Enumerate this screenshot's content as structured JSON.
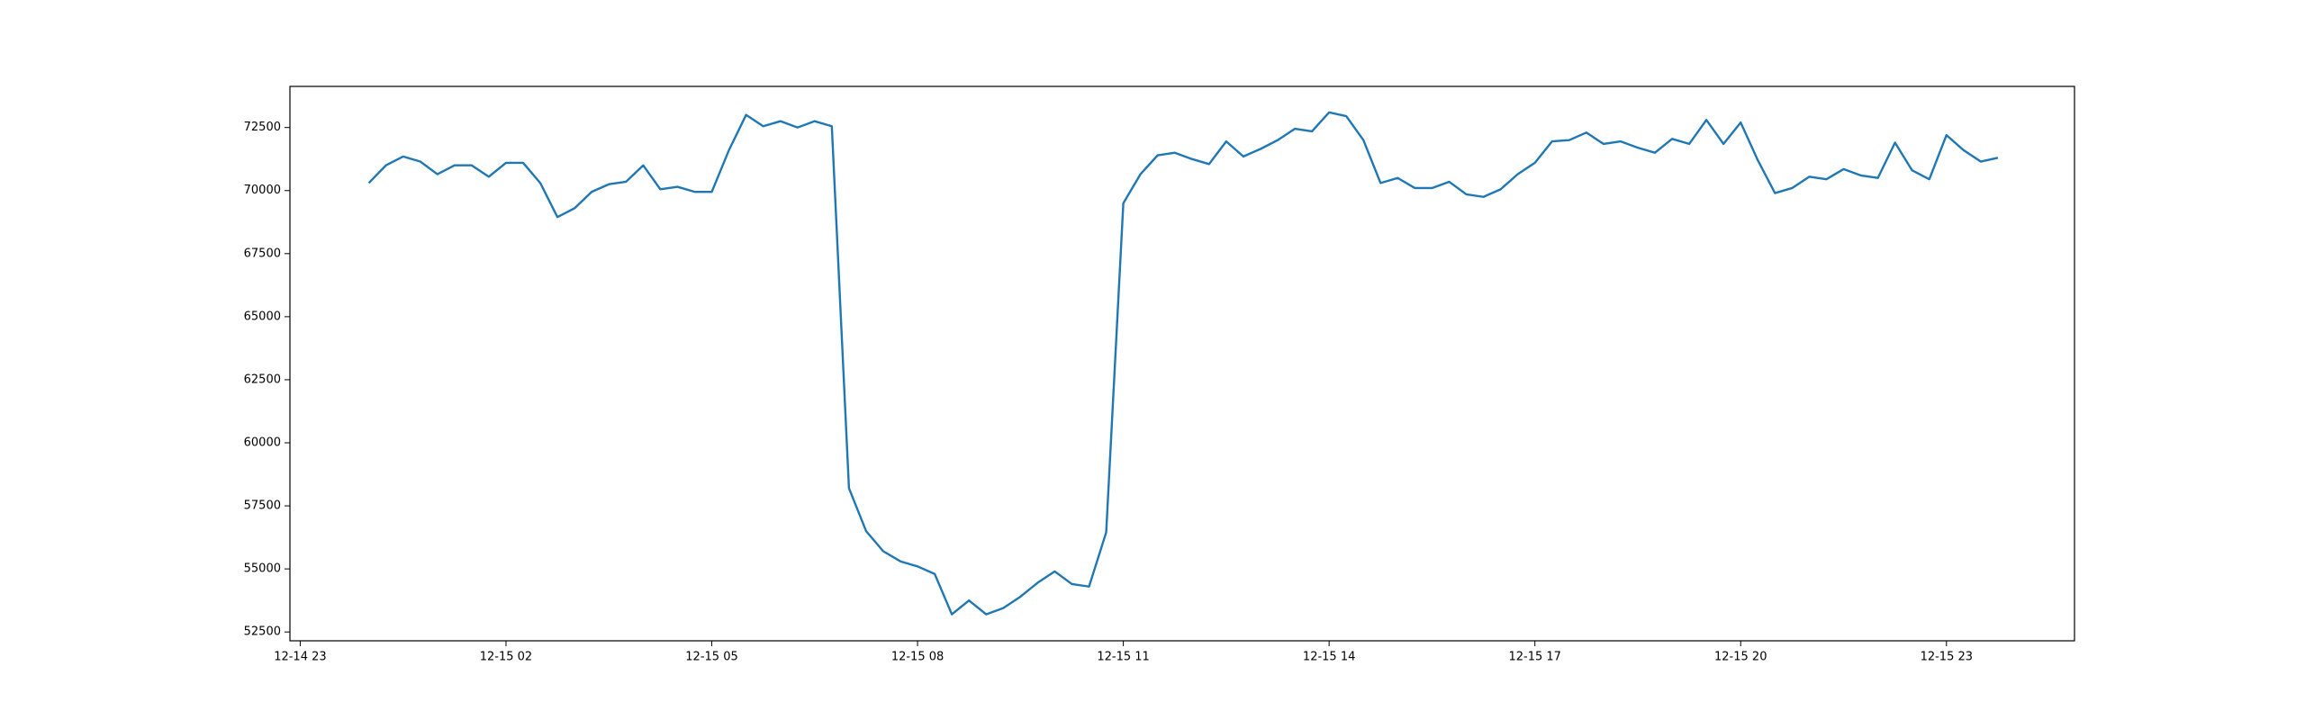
{
  "chart_data": {
    "type": "line",
    "color": "#1f77b4",
    "x": [
      "12-15 00:00",
      "12-15 00:15",
      "12-15 00:30",
      "12-15 00:45",
      "12-15 01:00",
      "12-15 01:15",
      "12-15 01:30",
      "12-15 01:45",
      "12-15 02:00",
      "12-15 02:15",
      "12-15 02:30",
      "12-15 02:45",
      "12-15 03:00",
      "12-15 03:15",
      "12-15 03:30",
      "12-15 03:45",
      "12-15 04:00",
      "12-15 04:15",
      "12-15 04:30",
      "12-15 04:45",
      "12-15 05:00",
      "12-15 05:15",
      "12-15 05:30",
      "12-15 05:45",
      "12-15 06:00",
      "12-15 06:15",
      "12-15 06:30",
      "12-15 06:45",
      "12-15 07:00",
      "12-15 07:15",
      "12-15 07:30",
      "12-15 07:45",
      "12-15 08:00",
      "12-15 08:15",
      "12-15 08:30",
      "12-15 08:45",
      "12-15 09:00",
      "12-15 09:15",
      "12-15 09:30",
      "12-15 09:45",
      "12-15 10:00",
      "12-15 10:15",
      "12-15 10:30",
      "12-15 10:45",
      "12-15 11:00",
      "12-15 11:15",
      "12-15 11:30",
      "12-15 11:45",
      "12-15 12:00",
      "12-15 12:15",
      "12-15 12:30",
      "12-15 12:45",
      "12-15 13:00",
      "12-15 13:15",
      "12-15 13:30",
      "12-15 13:45",
      "12-15 14:00",
      "12-15 14:15",
      "12-15 14:30",
      "12-15 14:45",
      "12-15 15:00",
      "12-15 15:15",
      "12-15 15:30",
      "12-15 15:45",
      "12-15 16:00",
      "12-15 16:15",
      "12-15 16:30",
      "12-15 16:45",
      "12-15 17:00",
      "12-15 17:15",
      "12-15 17:30",
      "12-15 17:45",
      "12-15 18:00",
      "12-15 18:15",
      "12-15 18:30",
      "12-15 18:45",
      "12-15 19:00",
      "12-15 19:15",
      "12-15 19:30",
      "12-15 19:45",
      "12-15 20:00",
      "12-15 20:15",
      "12-15 20:30",
      "12-15 20:45",
      "12-15 21:00",
      "12-15 21:15",
      "12-15 21:30",
      "12-15 21:45",
      "12-15 22:00",
      "12-15 22:15",
      "12-15 22:30",
      "12-15 22:45",
      "12-15 23:00",
      "12-15 23:15",
      "12-15 23:30",
      "12-15 23:45"
    ],
    "values": [
      70300,
      71000,
      71350,
      71150,
      70650,
      71000,
      71000,
      70550,
      71100,
      71100,
      70300,
      68950,
      69300,
      69950,
      70250,
      70350,
      71000,
      70050,
      70150,
      69950,
      69950,
      71600,
      73000,
      72550,
      72750,
      72500,
      72750,
      72550,
      58200,
      56500,
      55700,
      55300,
      55100,
      54800,
      53200,
      53750,
      53200,
      53450,
      53900,
      54450,
      54900,
      54400,
      54300,
      56450,
      69500,
      70650,
      71400,
      71500,
      71250,
      71050,
      71950,
      71350,
      71650,
      72000,
      72450,
      72350,
      73100,
      72950,
      72000,
      70300,
      70500,
      70100,
      70100,
      70350,
      69850,
      69750,
      70050,
      70650,
      71100,
      71950,
      72000,
      72300,
      71850,
      71950,
      71700,
      71500,
      72050,
      71850,
      72800,
      71850,
      72700,
      71200,
      69900,
      70100,
      70550,
      70450,
      70850,
      70600,
      70500,
      71900,
      70800,
      70450,
      72200,
      71600,
      71150,
      71300
    ],
    "xlim": [
      "12-14 22:51",
      "12-16 00:52"
    ],
    "xticks": [
      "12-14 23",
      "12-15 02",
      "12-15 05",
      "12-15 08",
      "12-15 11",
      "12-15 14",
      "12-15 17",
      "12-15 20",
      "12-15 23"
    ],
    "ylim": [
      52150,
      74130
    ],
    "yticks": [
      52500,
      55000,
      57500,
      60000,
      62500,
      65000,
      67500,
      70000,
      72500
    ]
  }
}
